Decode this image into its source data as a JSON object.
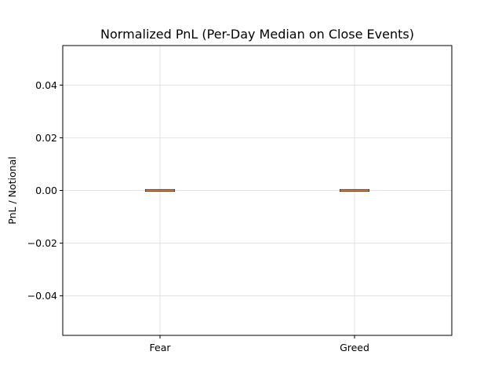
{
  "chart_data": {
    "type": "box",
    "title": "Normalized PnL (Per-Day Median on Close Events)",
    "xlabel": "",
    "ylabel": "PnL / Notional",
    "categories": [
      "Fear",
      "Greed"
    ],
    "boxes": [
      {
        "category": "Fear",
        "min": 0.0,
        "q1": 0.0,
        "median": 0.0,
        "q3": 0.0,
        "max": 0.0
      },
      {
        "category": "Greed",
        "min": 0.0,
        "q1": 0.0,
        "median": 0.0,
        "q3": 0.0,
        "max": 0.0
      }
    ],
    "ylim": [
      -0.055,
      0.055
    ],
    "yticks": [
      -0.04,
      -0.02,
      0.0,
      0.02,
      0.04
    ],
    "ytick_labels": [
      "−0.04",
      "−0.02",
      "0.00",
      "0.02",
      "0.04"
    ],
    "grid": true,
    "legend": "none",
    "colors": {
      "median_line": "#ff7f0e",
      "box_edge": "#000000",
      "grid": "#dddddd"
    }
  }
}
